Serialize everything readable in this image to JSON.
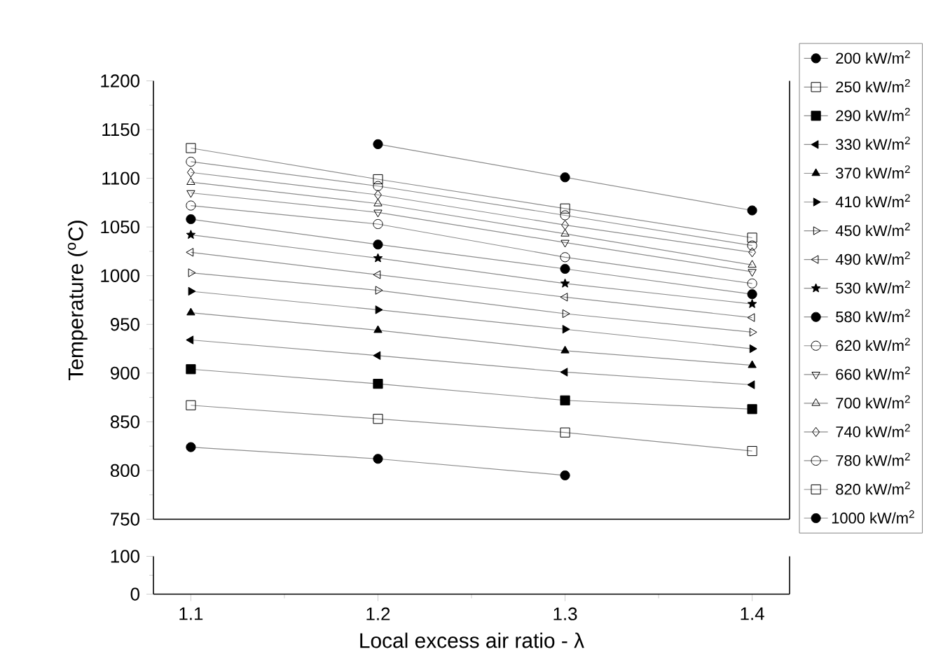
{
  "chart_data": [
    {
      "type": "line",
      "ylabel": "Temperature ($^{o}$C)",
      "x": [
        1.1,
        1.2,
        1.3,
        1.4
      ],
      "xlim": [
        1.08,
        1.42
      ],
      "ylim": [
        750,
        1200
      ],
      "yticks": [
        750,
        800,
        850,
        900,
        950,
        1000,
        1050,
        1100,
        1150,
        1200
      ],
      "tick_labels": "y",
      "legend": "right",
      "series": [
        {
          "name": "200 kW/m$^{2}$",
          "color": "#000000",
          "marker": "circle",
          "values": [
            824,
            812,
            795,
            null
          ]
        },
        {
          "name": "250 kW/m$^{2}$",
          "color": "#000000",
          "marker": "square",
          "values": [
            867,
            853,
            839,
            820
          ]
        },
        {
          "name": "290 kW/m$^{2}$",
          "color": "#000000",
          "marker": "square",
          "values": [
            904,
            889,
            872,
            863
          ]
        },
        {
          "name": "330 kW/m$^{2}$",
          "color": "#000000",
          "marker": "triangle",
          "values": [
            934,
            918,
            901,
            888
          ]
        },
        {
          "name": "370 kW/m$^{2}$",
          "color": "#000000",
          "marker": "triangle",
          "values": [
            962,
            944,
            923,
            908
          ]
        },
        {
          "name": "410 kW/m$^{2}$",
          "color": "#000000",
          "marker": "triangle",
          "values": [
            984,
            965,
            945,
            925
          ]
        },
        {
          "name": "450 kW/m$^{2}$",
          "color": "#000000",
          "marker": "triangle",
          "values": [
            1003,
            985,
            961,
            942
          ]
        },
        {
          "name": "490 kW/m$^{2}$",
          "color": "#000000",
          "marker": "triangle",
          "values": [
            1024,
            1001,
            978,
            957
          ]
        },
        {
          "name": "530 kW/m$^{2}$",
          "color": "#000000",
          "marker": "star",
          "values": [
            1042,
            1018,
            992,
            971
          ]
        },
        {
          "name": "580 kW/m$^{2}$",
          "color": "#000000",
          "marker": "circle",
          "values": [
            1058,
            1032,
            1007,
            981
          ]
        },
        {
          "name": "620 kW/m$^{2}$",
          "color": "#000000",
          "marker": "circle",
          "values": [
            1072,
            1053,
            1019,
            992
          ]
        },
        {
          "name": "660 kW/m$^{2}$",
          "color": "#000000",
          "marker": "triangle",
          "values": [
            1085,
            1065,
            1034,
            1004
          ]
        },
        {
          "name": "700 kW/m$^{2}$",
          "color": "#000000",
          "marker": "triangle",
          "values": [
            1096,
            1074,
            1043,
            1011
          ]
        },
        {
          "name": "740 kW/m$^{2}$",
          "color": "#000000",
          "marker": "diamond",
          "values": [
            1106,
            1083,
            1052,
            1024
          ]
        },
        {
          "name": "780 kW/m$^{2}$",
          "color": "#000000",
          "marker": "circle",
          "values": [
            1117,
            1092,
            1062,
            1031
          ]
        },
        {
          "name": "820 kW/m$^{2}$",
          "color": "#000000",
          "marker": "square",
          "values": [
            1131,
            1099,
            1069,
            1039
          ]
        },
        {
          "name": "1000 kW/m$^{2}$",
          "color": "#000000",
          "marker": "circle",
          "values": [
            null,
            1135,
            1101,
            1067
          ]
        }
      ]
    },
    {
      "type": "line",
      "xlabel": "Local excess air ratio - λ",
      "xlim": [
        1.08,
        1.42
      ],
      "xticks": [
        1.1,
        1.2,
        1.3,
        1.4
      ],
      "ylim": [
        0,
        100
      ],
      "yticks": [
        0,
        100
      ]
    }
  ]
}
